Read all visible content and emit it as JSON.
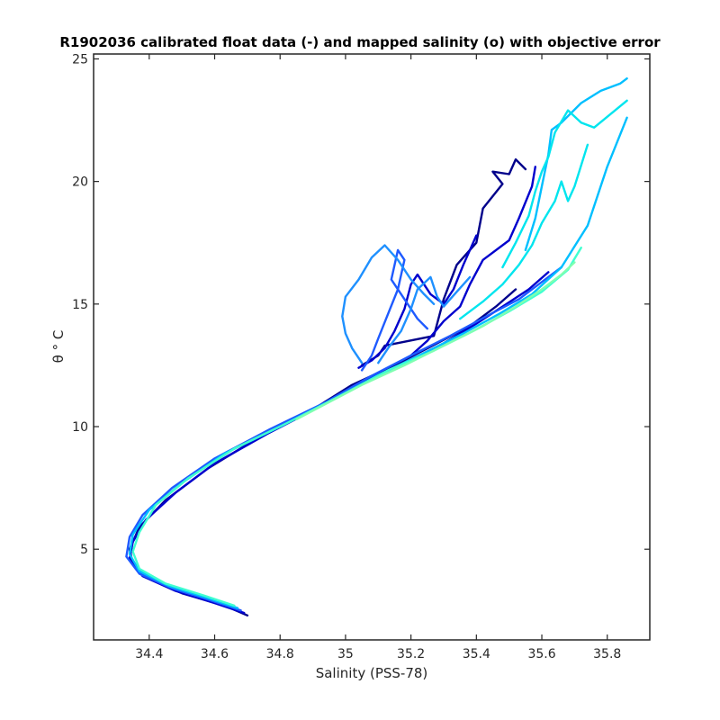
{
  "chart_data": {
    "type": "line",
    "title": "R1902036 calibrated float data (-) and mapped salinity (o) with objective error",
    "xlabel": "Salinity (PSS-78)",
    "ylabel": "θ ° C",
    "xlim": [
      34.23,
      35.93
    ],
    "ylim": [
      1.3,
      25.2
    ],
    "xticks": [
      34.4,
      34.6,
      34.8,
      35,
      35.2,
      35.4,
      35.6,
      35.8
    ],
    "xtick_labels": [
      "34.4",
      "34.6",
      "34.8",
      "35",
      "35.2",
      "35.4",
      "35.6",
      "35.8"
    ],
    "yticks": [
      5,
      10,
      15,
      20,
      25
    ],
    "ytick_labels": [
      "5",
      "10",
      "15",
      "20",
      "25"
    ],
    "grid": false,
    "colormap": [
      "#00008b",
      "#0000cd",
      "#1e5aff",
      "#1e90ff",
      "#00bfff",
      "#00e5ee",
      "#40ffd0",
      "#7fffb0"
    ],
    "series": [
      {
        "color": "#00008b",
        "x": [
          34.7,
          34.63,
          34.5,
          34.4,
          34.35,
          34.34,
          34.37,
          34.45,
          34.58,
          34.74,
          34.9,
          35.02,
          35.15,
          35.28,
          35.38,
          35.46,
          35.52
        ],
        "y": [
          2.3,
          2.7,
          3.2,
          3.8,
          4.4,
          5.0,
          5.9,
          7.0,
          8.3,
          9.6,
          10.7,
          11.7,
          12.5,
          13.4,
          14.1,
          14.9,
          15.6
        ]
      },
      {
        "color": "#00008b",
        "x": [
          35.05,
          35.1,
          35.12,
          35.27,
          35.3,
          35.34,
          35.4,
          35.42,
          35.48,
          35.45,
          35.5,
          35.52,
          35.55
        ],
        "y": [
          12.5,
          12.9,
          13.3,
          13.7,
          15.2,
          16.6,
          17.5,
          18.9,
          19.9,
          20.4,
          20.3,
          20.9,
          20.5
        ]
      },
      {
        "color": "#0000cd",
        "x": [
          34.69,
          34.6,
          34.48,
          34.38,
          34.34,
          34.35,
          34.39,
          34.48,
          34.6,
          34.76,
          34.92,
          35.05,
          35.18,
          35.3,
          35.4,
          35.48,
          35.56,
          35.62
        ],
        "y": [
          2.4,
          2.8,
          3.3,
          3.9,
          4.6,
          5.3,
          6.2,
          7.3,
          8.5,
          9.7,
          10.8,
          11.8,
          12.6,
          13.4,
          14.2,
          14.9,
          15.6,
          16.3
        ]
      },
      {
        "color": "#0000cd",
        "x": [
          35.2,
          35.25,
          35.3,
          35.35,
          35.38,
          35.42,
          35.5,
          35.53,
          35.57,
          35.58
        ],
        "y": [
          12.9,
          13.5,
          14.3,
          14.9,
          15.8,
          16.8,
          17.6,
          18.5,
          19.8,
          20.6
        ]
      },
      {
        "color": "#0000cd",
        "x": [
          35.04,
          35.08,
          35.12,
          35.15,
          35.18,
          35.2,
          35.22,
          35.26,
          35.3,
          35.33,
          35.36,
          35.4
        ],
        "y": [
          12.4,
          12.7,
          13.2,
          13.9,
          14.8,
          15.8,
          16.2,
          15.4,
          15.0,
          15.6,
          16.6,
          17.8
        ]
      },
      {
        "color": "#1e5aff",
        "x": [
          34.68,
          34.59,
          34.47,
          34.37,
          34.33,
          34.34,
          34.38,
          34.47,
          34.6,
          34.77,
          34.94,
          35.07,
          35.2,
          35.32,
          35.43,
          35.53,
          35.6,
          35.66
        ],
        "y": [
          2.5,
          2.9,
          3.4,
          4.0,
          4.7,
          5.5,
          6.4,
          7.5,
          8.7,
          9.9,
          11.0,
          12.0,
          12.9,
          13.7,
          14.5,
          15.2,
          15.9,
          16.5
        ]
      },
      {
        "color": "#1e5aff",
        "x": [
          35.05,
          35.08,
          35.1,
          35.13,
          35.16,
          35.18,
          35.16,
          35.14,
          35.18,
          35.22,
          35.25
        ],
        "y": [
          12.3,
          12.9,
          13.6,
          14.6,
          15.6,
          16.8,
          17.2,
          16.0,
          15.2,
          14.4,
          14.0
        ]
      },
      {
        "color": "#1e90ff",
        "x": [
          35.05,
          35.02,
          35.0,
          34.99,
          35.0,
          35.04,
          35.08,
          35.12,
          35.16,
          35.2,
          35.24,
          35.27
        ],
        "y": [
          12.6,
          13.2,
          13.8,
          14.5,
          15.3,
          16.0,
          16.9,
          17.4,
          16.8,
          16.0,
          15.4,
          15.0
        ]
      },
      {
        "color": "#1e90ff",
        "x": [
          35.1,
          35.13,
          35.17,
          35.2,
          35.22,
          35.26,
          35.28,
          35.3,
          35.34,
          35.38
        ],
        "y": [
          12.6,
          13.2,
          13.9,
          14.8,
          15.6,
          16.1,
          15.3,
          14.9,
          15.5,
          16.1
        ]
      },
      {
        "color": "#00bfff",
        "x": [
          34.67,
          34.58,
          34.46,
          34.37,
          34.34,
          34.35,
          34.4,
          34.5,
          34.63,
          34.8,
          34.96,
          35.1,
          35.24,
          35.36,
          35.47,
          35.57,
          35.66,
          35.74,
          35.8,
          35.86
        ],
        "y": [
          2.6,
          3.0,
          3.5,
          4.1,
          4.8,
          5.6,
          6.6,
          7.7,
          8.9,
          10.0,
          11.1,
          12.1,
          13.0,
          13.8,
          14.6,
          15.4,
          16.5,
          18.2,
          20.6,
          22.6
        ]
      },
      {
        "color": "#00bfff",
        "x": [
          35.55,
          35.58,
          35.6,
          35.62,
          35.63,
          35.66,
          35.72,
          35.78,
          35.84,
          35.86
        ],
        "y": [
          17.2,
          18.5,
          19.8,
          21.1,
          22.1,
          22.4,
          23.2,
          23.7,
          24.0,
          24.2
        ]
      },
      {
        "color": "#00e5ee",
        "x": [
          35.48,
          35.52,
          35.56,
          35.58,
          35.6,
          35.62,
          35.64,
          35.68,
          35.72,
          35.76,
          35.86
        ],
        "y": [
          16.5,
          17.5,
          18.6,
          19.6,
          20.4,
          21.0,
          22.0,
          22.9,
          22.4,
          22.2,
          23.3
        ]
      },
      {
        "color": "#00e5ee",
        "x": [
          35.35,
          35.42,
          35.48,
          35.53,
          35.57,
          35.6,
          35.64,
          35.66,
          35.68,
          35.7,
          35.74
        ],
        "y": [
          14.4,
          15.1,
          15.8,
          16.6,
          17.4,
          18.3,
          19.2,
          20.0,
          19.2,
          19.8,
          21.5
        ]
      },
      {
        "color": "#40ffd0",
        "x": [
          34.66,
          34.57,
          34.45,
          34.37,
          34.35,
          34.37,
          34.42,
          34.52,
          34.66,
          34.83,
          34.99,
          35.13,
          35.27,
          35.39,
          35.5,
          35.6,
          35.68,
          35.72
        ],
        "y": [
          2.7,
          3.1,
          3.6,
          4.2,
          4.9,
          5.7,
          6.8,
          7.9,
          9.1,
          10.2,
          11.3,
          12.3,
          13.1,
          13.9,
          14.7,
          15.5,
          16.4,
          17.3
        ]
      },
      {
        "color": "#7fffb0",
        "x": [
          34.85,
          34.95,
          35.05,
          35.18,
          35.3,
          35.42,
          35.52,
          35.6,
          35.66,
          35.7
        ],
        "y": [
          10.3,
          11.0,
          11.7,
          12.5,
          13.3,
          14.1,
          14.9,
          15.6,
          16.2,
          16.7
        ]
      }
    ]
  }
}
